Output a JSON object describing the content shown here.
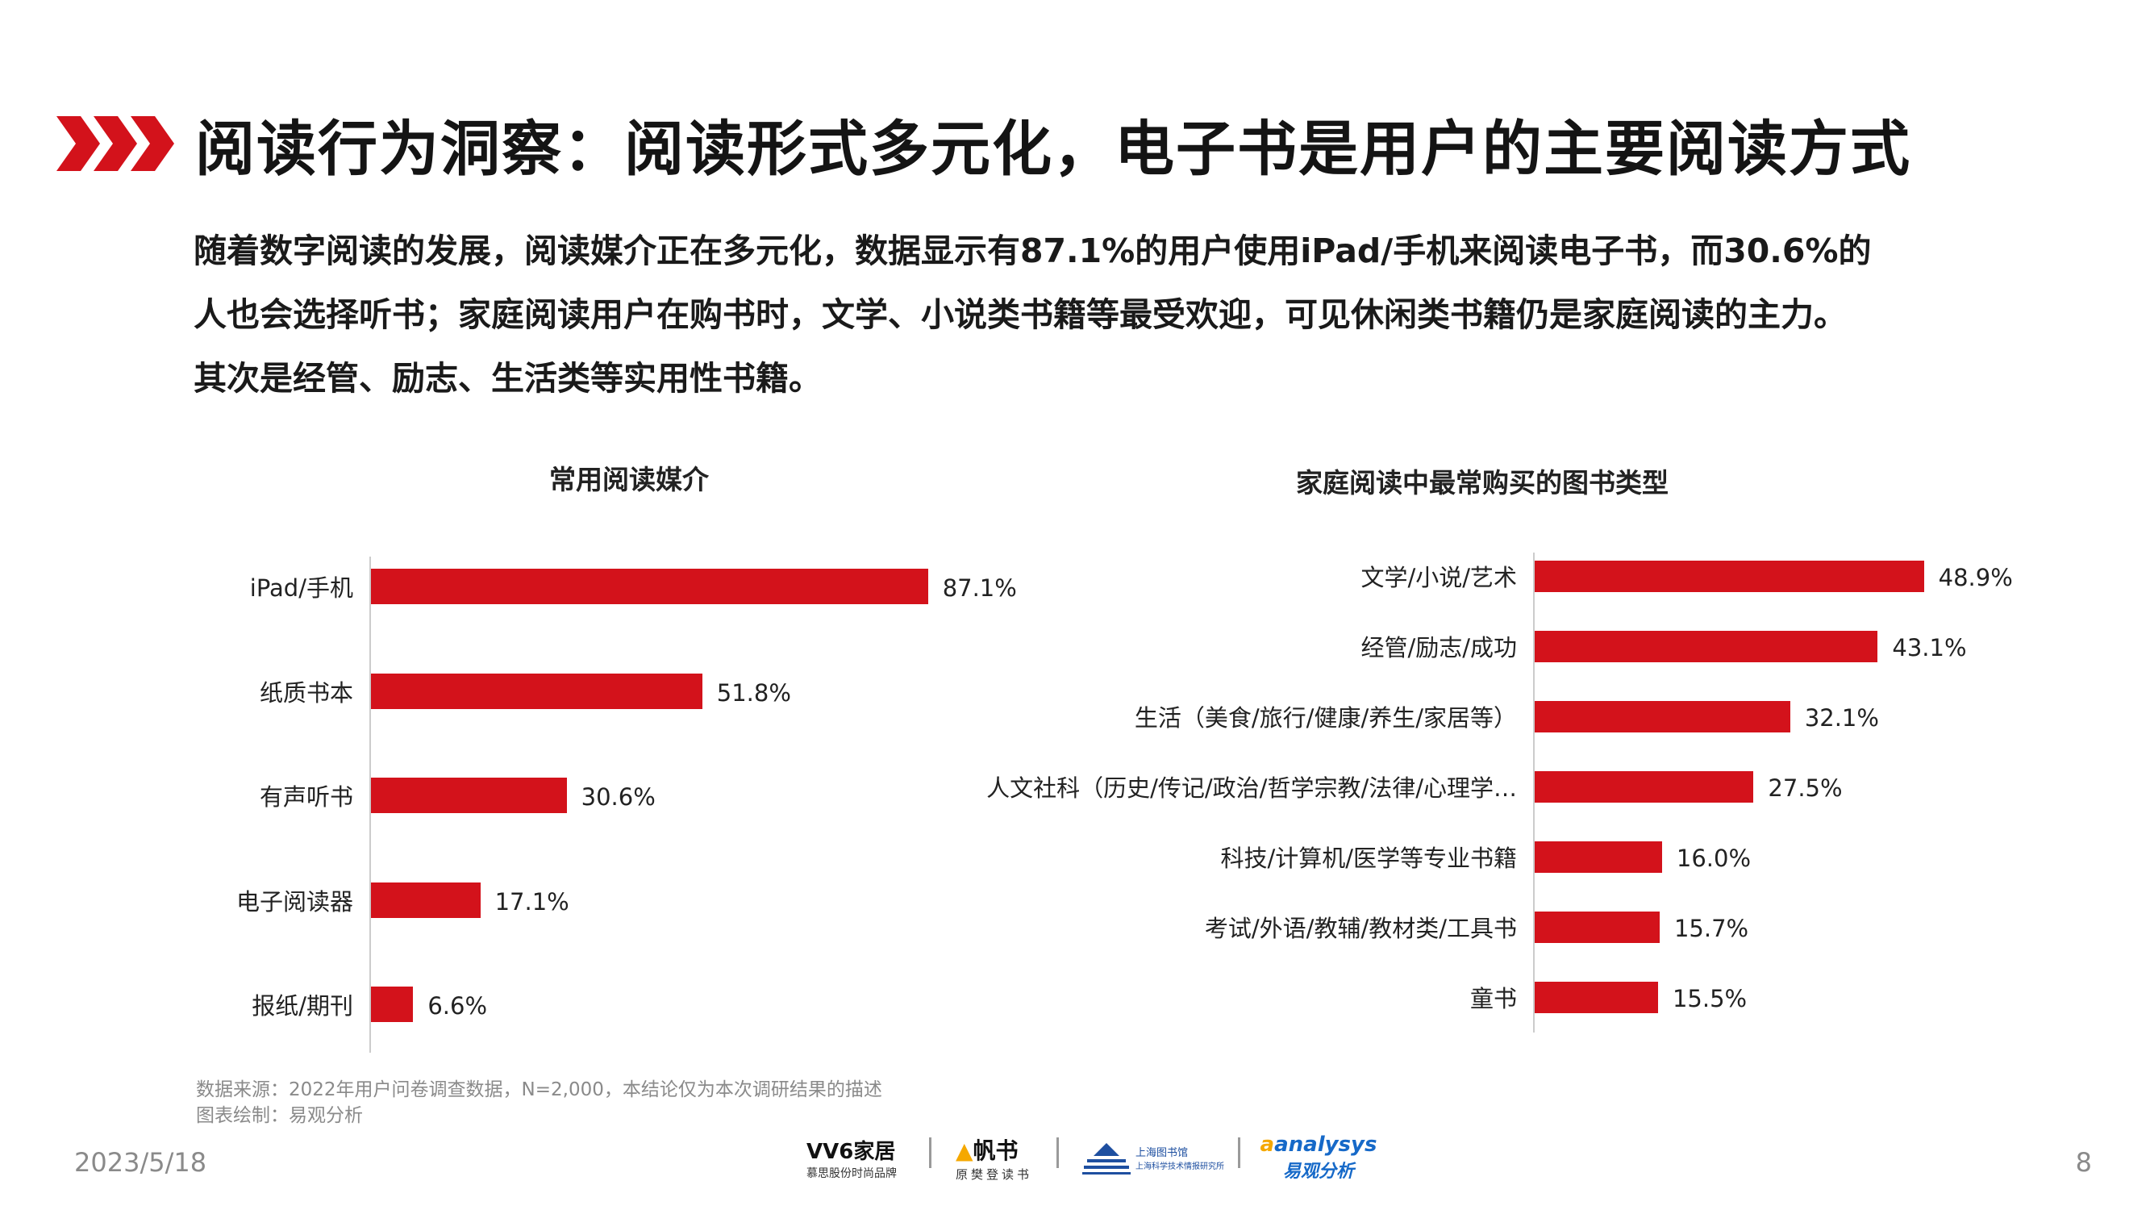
{
  "header": {
    "title": "阅读行为洞察：阅读形式多元化，电子书是用户的主要阅读方式",
    "brand_color": "#d3121b"
  },
  "summary_lines": [
    "随着数字阅读的发展，阅读媒介正在多元化，数据显示有87.1%的用户使用iPad/手机来阅读电子书，而30.6%的",
    "人也会选择听书；家庭阅读用户在购书时，文学、小说类书籍等最受欢迎，可见休闲类书籍仍是家庭阅读的主力。",
    "其次是经管、励志、生活类等实用性书籍。"
  ],
  "chart_data": [
    {
      "type": "bar",
      "orientation": "horizontal",
      "title": "常用阅读媒介",
      "categories": [
        "iPad/手机",
        "纸质书本",
        "有声听书",
        "电子阅读器",
        "报纸/期刊"
      ],
      "values": [
        87.1,
        51.8,
        30.6,
        17.1,
        6.6
      ],
      "value_labels": [
        "87.1%",
        "51.8%",
        "30.6%",
        "17.1%",
        "6.6%"
      ],
      "unit": "%",
      "xlim": [
        0,
        100
      ],
      "color": "#d3121b",
      "grid": false,
      "legend": "none"
    },
    {
      "type": "bar",
      "orientation": "horizontal",
      "title": "家庭阅读中最常购买的图书类型",
      "categories": [
        "文学/小说/艺术",
        "经管/励志/成功",
        "生活（美食/旅行/健康/养生/家居等）",
        "人文社科（历史/传记/政治/哲学宗教/法律/心理学…",
        "科技/计算机/医学等专业书籍",
        "考试/外语/教辅/教材类/工具书",
        "童书"
      ],
      "values": [
        48.9,
        43.1,
        32.1,
        27.5,
        16.0,
        15.7,
        15.5
      ],
      "value_labels": [
        "48.9%",
        "43.1%",
        "32.1%",
        "27.5%",
        "16.0%",
        "15.7%",
        "15.5%"
      ],
      "unit": "%",
      "xlim": [
        0,
        100
      ],
      "color": "#d3121b",
      "grid": false,
      "legend": "none"
    }
  ],
  "footer": {
    "source_line": "数据来源：2022年用户问卷调查数据，N=2,000，本结论仅为本次调研结果的描述",
    "credit_line": "图表绘制：易观分析",
    "date": "2023/5/18",
    "page_number": "8",
    "logos": [
      {
        "name": "V6家居",
        "sub": "慕思股份时尚品牌"
      },
      {
        "name": "帆书",
        "sub": "原樊登读书"
      },
      {
        "name": "上海图书馆",
        "sub": "上海科学技术情报研究所"
      },
      {
        "name": "analysys",
        "sub": "易观分析"
      }
    ]
  }
}
